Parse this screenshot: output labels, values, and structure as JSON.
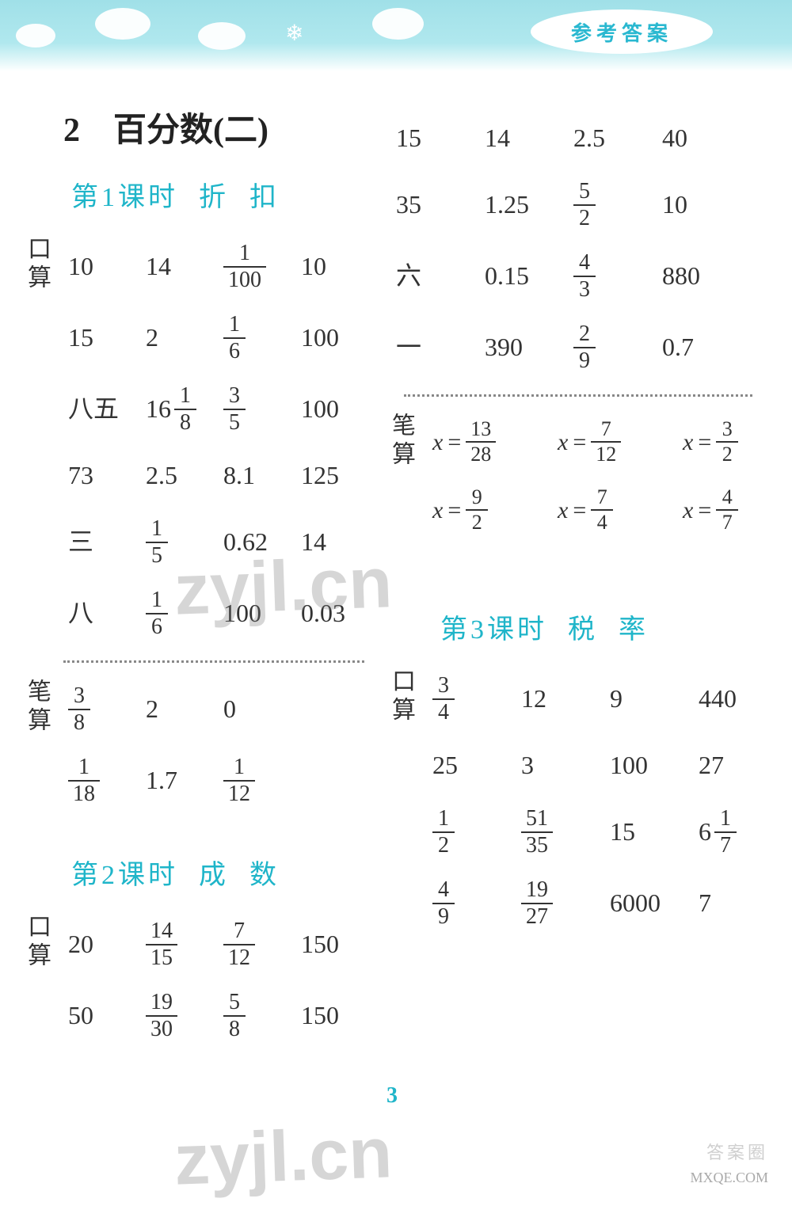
{
  "banner_label": "参考答案",
  "chapter_title": "2　百分数(二)",
  "page_number": "3",
  "watermark": "zyjl.cn",
  "footer_url": "MXQE.COM",
  "footer_logo": "答案圈",
  "labels": {
    "kousuan": "口算",
    "bisuan": "笔算"
  },
  "lesson1": {
    "title_a": "第1课时",
    "title_b": "折",
    "title_c": "扣",
    "kousuan": [
      [
        "10",
        "14",
        {
          "f": [
            1,
            100
          ]
        },
        "10"
      ],
      [
        "15",
        "2",
        {
          "f": [
            1,
            6
          ]
        },
        "100"
      ],
      [
        "八五",
        {
          "m": [
            16,
            1,
            8
          ]
        },
        {
          "f": [
            3,
            5
          ]
        },
        "100"
      ],
      [
        "73",
        "2.5",
        "8.1",
        "125"
      ],
      [
        "三",
        {
          "f": [
            1,
            5
          ]
        },
        "0.62",
        "14"
      ],
      [
        "八",
        {
          "f": [
            1,
            6
          ]
        },
        "100",
        "0.03"
      ]
    ],
    "bisuan": [
      [
        {
          "f": [
            3,
            8
          ]
        },
        "2",
        "0",
        ""
      ],
      [
        {
          "f": [
            1,
            18
          ]
        },
        "1.7",
        {
          "f": [
            1,
            12
          ]
        },
        ""
      ]
    ]
  },
  "lesson2": {
    "title_a": "第2课时",
    "title_b": "成",
    "title_c": "数",
    "kousuan": [
      [
        "20",
        {
          "f": [
            14,
            15
          ]
        },
        {
          "f": [
            7,
            12
          ]
        },
        "150"
      ],
      [
        "50",
        {
          "f": [
            19,
            30
          ]
        },
        {
          "f": [
            5,
            8
          ]
        },
        "150"
      ]
    ]
  },
  "right_top": [
    [
      "15",
      "14",
      "2.5",
      "40"
    ],
    [
      "35",
      "1.25",
      {
        "f": [
          5,
          2
        ]
      },
      "10"
    ],
    [
      "六",
      "0.15",
      {
        "f": [
          4,
          3
        ]
      },
      "880"
    ],
    [
      "一",
      "390",
      {
        "f": [
          2,
          9
        ]
      },
      "0.7"
    ]
  ],
  "right_bisuan": [
    [
      {
        "eq": [
          13,
          28
        ]
      },
      {
        "eq": [
          7,
          12
        ]
      },
      {
        "eq": [
          3,
          2
        ]
      }
    ],
    [
      {
        "eq": [
          9,
          2
        ]
      },
      {
        "eq": [
          7,
          4
        ]
      },
      {
        "eq": [
          4,
          7
        ]
      }
    ]
  ],
  "lesson3": {
    "title_a": "第3课时",
    "title_b": "税",
    "title_c": "率",
    "kousuan": [
      [
        {
          "f": [
            3,
            4
          ]
        },
        "12",
        "9",
        "440"
      ],
      [
        "25",
        "3",
        "100",
        "27"
      ],
      [
        {
          "f": [
            1,
            2
          ]
        },
        {
          "f": [
            51,
            35
          ]
        },
        "15",
        {
          "m": [
            6,
            1,
            7
          ]
        }
      ],
      [
        {
          "f": [
            4,
            9
          ]
        },
        {
          "f": [
            19,
            27
          ]
        },
        "6000",
        "7"
      ]
    ]
  }
}
